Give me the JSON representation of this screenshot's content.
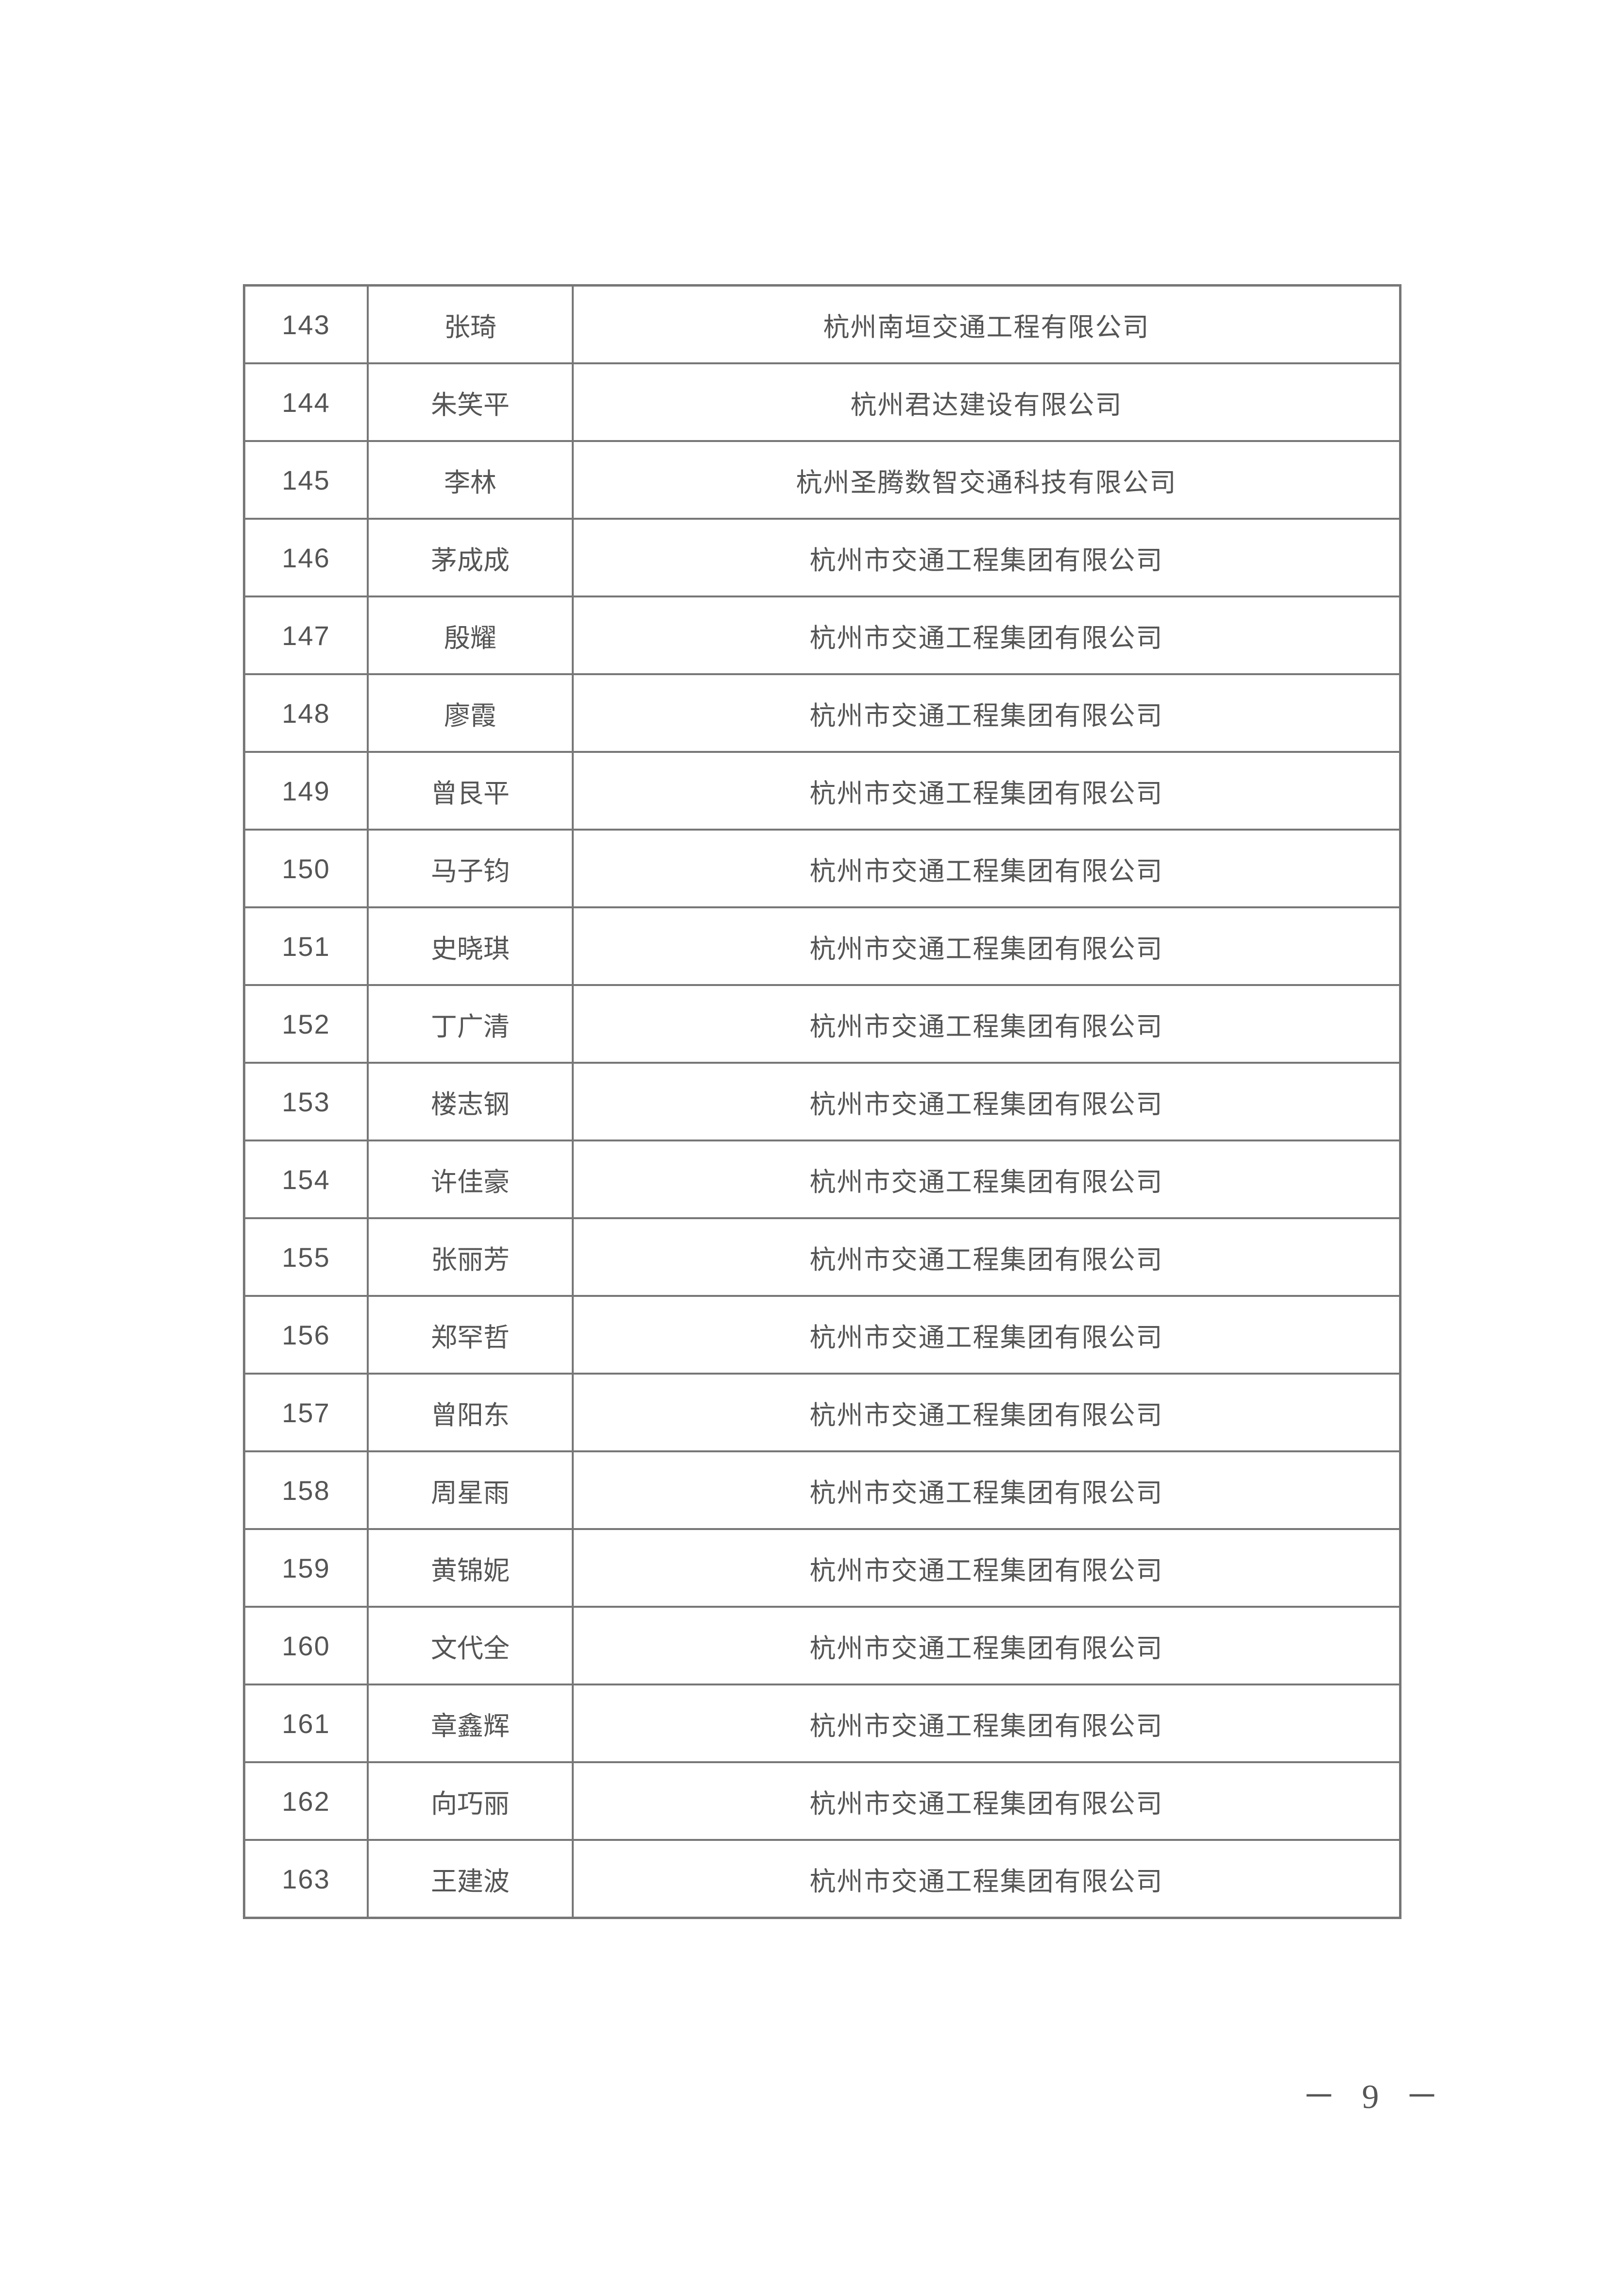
{
  "table": {
    "rows": [
      {
        "no": "143",
        "name": "张琦",
        "org": "杭州南垣交通工程有限公司"
      },
      {
        "no": "144",
        "name": "朱笑平",
        "org": "杭州君达建设有限公司"
      },
      {
        "no": "145",
        "name": "李林",
        "org": "杭州圣腾数智交通科技有限公司"
      },
      {
        "no": "146",
        "name": "茅成成",
        "org": "杭州市交通工程集团有限公司"
      },
      {
        "no": "147",
        "name": "殷耀",
        "org": "杭州市交通工程集团有限公司"
      },
      {
        "no": "148",
        "name": "廖霞",
        "org": "杭州市交通工程集团有限公司"
      },
      {
        "no": "149",
        "name": "曾艮平",
        "org": "杭州市交通工程集团有限公司"
      },
      {
        "no": "150",
        "name": "马子钧",
        "org": "杭州市交通工程集团有限公司"
      },
      {
        "no": "151",
        "name": "史晓琪",
        "org": "杭州市交通工程集团有限公司"
      },
      {
        "no": "152",
        "name": "丁广清",
        "org": "杭州市交通工程集团有限公司"
      },
      {
        "no": "153",
        "name": "楼志钢",
        "org": "杭州市交通工程集团有限公司"
      },
      {
        "no": "154",
        "name": "许佳豪",
        "org": "杭州市交通工程集团有限公司"
      },
      {
        "no": "155",
        "name": "张丽芳",
        "org": "杭州市交通工程集团有限公司"
      },
      {
        "no": "156",
        "name": "郑罕哲",
        "org": "杭州市交通工程集团有限公司"
      },
      {
        "no": "157",
        "name": "曾阳东",
        "org": "杭州市交通工程集团有限公司"
      },
      {
        "no": "158",
        "name": "周星雨",
        "org": "杭州市交通工程集团有限公司"
      },
      {
        "no": "159",
        "name": "黄锦妮",
        "org": "杭州市交通工程集团有限公司"
      },
      {
        "no": "160",
        "name": "文代全",
        "org": "杭州市交通工程集团有限公司"
      },
      {
        "no": "161",
        "name": "章鑫辉",
        "org": "杭州市交通工程集团有限公司"
      },
      {
        "no": "162",
        "name": "向巧丽",
        "org": "杭州市交通工程集团有限公司"
      },
      {
        "no": "163",
        "name": "王建波",
        "org": "杭州市交通工程集团有限公司"
      }
    ]
  },
  "footer": {
    "page_number": "－ 9 －"
  }
}
